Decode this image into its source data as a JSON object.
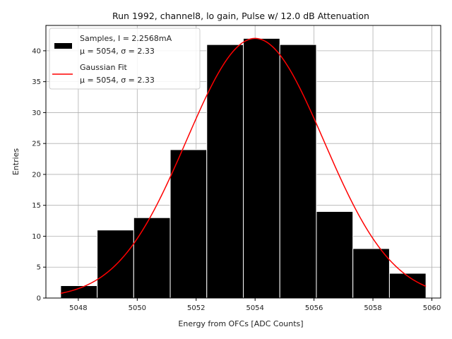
{
  "chart_data": {
    "type": "bar",
    "title": "Run 1992, channel8, lo gain, Pulse w/ 12.0 dB Attenuation",
    "xlabel": "Energy from OFCs [ADC Counts]",
    "ylabel": "Entries",
    "xlim": [
      5046.9,
      5060.3
    ],
    "ylim": [
      0,
      44.1
    ],
    "xticks": [
      5048,
      5050,
      5052,
      5054,
      5056,
      5058,
      5060
    ],
    "yticks": [
      0,
      5,
      10,
      15,
      20,
      25,
      30,
      35,
      40
    ],
    "grid": true,
    "legend_position": "top-left",
    "histogram": {
      "name": "Samples, I = 2.2568mA",
      "subtitle": "μ = 5054, σ = 2.33",
      "bin_edges": [
        5047.4,
        5048.64,
        5049.88,
        5051.12,
        5052.36,
        5053.6,
        5054.84,
        5056.08,
        5057.32,
        5058.56,
        5059.8
      ],
      "values": [
        2,
        11,
        13,
        24,
        41,
        42,
        41,
        14,
        8,
        4
      ],
      "color": "#000000"
    },
    "fit": {
      "name": "Gaussian Fit",
      "subtitle": "μ = 5054, σ = 2.33",
      "amplitude": 42,
      "mu": 5054,
      "sigma": 2.33,
      "x_range": [
        5047.4,
        5059.8
      ],
      "color": "#ff0000"
    }
  }
}
